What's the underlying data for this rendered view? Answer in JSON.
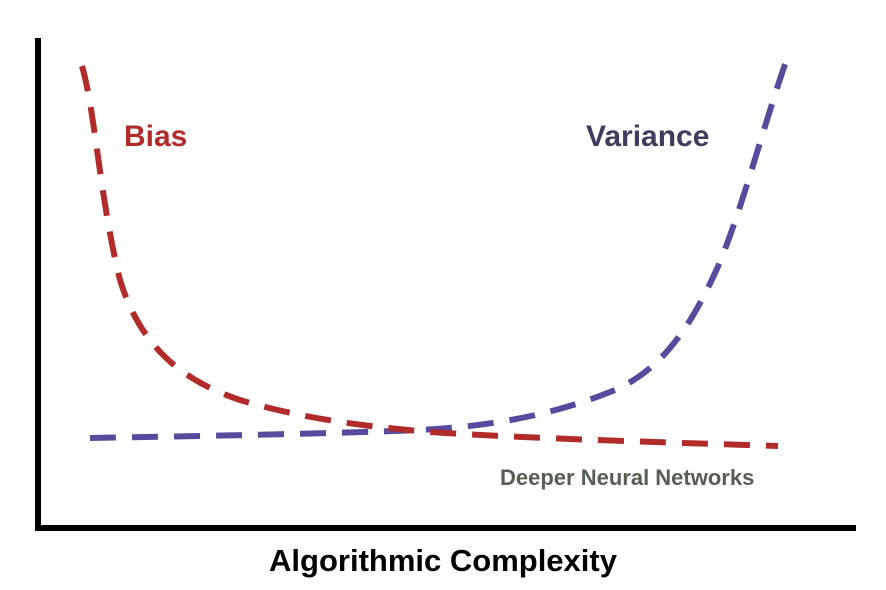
{
  "diagram": {
    "curves": [
      {
        "name": "Bias",
        "color": "#b22b2b"
      },
      {
        "name": "Variance",
        "color": "#5a4a9e"
      }
    ],
    "labels": {
      "bias": "Bias",
      "variance": "Variance",
      "note": "Deeper Neural Networks",
      "x_axis": "Algorithmic Complexity"
    },
    "colors": {
      "bias": "#b22b2b",
      "variance": "#3d3d5c",
      "note": "#556052",
      "axis": "#000000"
    }
  }
}
